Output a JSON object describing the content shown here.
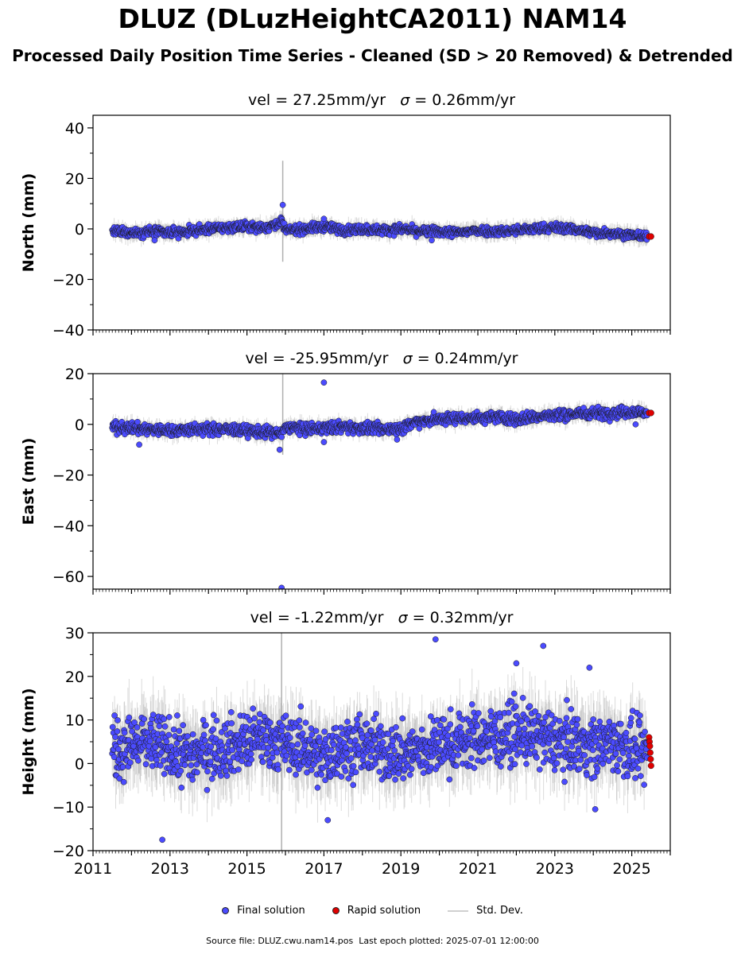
{
  "title": "DLUZ (DLuzHeightCA2011) NAM14",
  "subtitle": "Processed Daily Position Time Series - Cleaned (SD > 20 Removed) & Detrended",
  "legend": {
    "final_label": "Final solution",
    "rapid_label": "Rapid solution",
    "std_label": "Std. Dev."
  },
  "footer": {
    "source": "Source file: DLUZ.cwu.nam14.pos",
    "last_epoch": "Last epoch plotted: 2025-07-01 12:00:00"
  },
  "colors": {
    "final": "#4b4bff",
    "rapid": "#e00000",
    "std_dev": "#b0b0b0",
    "marker_edge": "#1a1a1a"
  },
  "chart_data": [
    {
      "type": "scatter",
      "panel": "north",
      "title": "vel = 27.25mm/yr   σ = 0.26mm/yr",
      "title_parts": {
        "prefix": "vel = 27.25mm/yr",
        "sigma_symbol": "σ",
        "sigma_text": " = 0.26mm/yr"
      },
      "ylabel": "North (mm)",
      "xlim": [
        2011,
        2026
      ],
      "ylim": [
        -40,
        45
      ],
      "yticks": [
        -40,
        -20,
        0,
        20,
        40
      ],
      "ytick_labels": [
        "−40",
        "−20",
        "0",
        "20",
        "40"
      ],
      "x_tick_labels_shown": false,
      "series": [
        {
          "name": "Final solution",
          "x": [
            2011.5,
            2012.0,
            2012.5,
            2013.0,
            2013.5,
            2014.0,
            2014.5,
            2015.0,
            2015.5,
            2015.9,
            2016.0,
            2016.5,
            2017.0,
            2017.5,
            2018.0,
            2018.5,
            2019.0,
            2019.5,
            2020.0,
            2020.5,
            2021.0,
            2021.5,
            2022.0,
            2022.5,
            2023.0,
            2023.5,
            2024.0,
            2024.5,
            2025.0,
            2025.4
          ],
          "y": [
            -1,
            -1.5,
            -1,
            -1.5,
            -1,
            0,
            0.5,
            1,
            0.5,
            3,
            -0.5,
            0,
            1,
            -0.5,
            0,
            -0.5,
            0,
            -1,
            -1,
            -1.5,
            -0.5,
            -1,
            -0.5,
            0,
            0.5,
            0,
            -1.5,
            -1.5,
            -2.5,
            -3
          ],
          "spread": 1.2,
          "outliers": [
            {
              "x": 2015.93,
              "y": 9.5
            },
            {
              "x": 2017.0,
              "y": 4.0
            },
            {
              "x": 2012.6,
              "y": -4.5
            },
            {
              "x": 2019.8,
              "y": -4.5
            }
          ]
        },
        {
          "name": "Rapid solution",
          "x": [
            2025.45,
            2025.5
          ],
          "y": [
            -3,
            -3
          ]
        }
      ],
      "std_dev": {
        "typical": 2.5,
        "spike": {
          "x": 2015.93,
          "up": 27,
          "down": -13
        }
      }
    },
    {
      "type": "scatter",
      "panel": "east",
      "title": "vel = -25.95mm/yr   σ = 0.24mm/yr",
      "title_parts": {
        "prefix": "vel = -25.95mm/yr",
        "sigma_symbol": "σ",
        "sigma_text": " = 0.24mm/yr"
      },
      "ylabel": "East (mm)",
      "xlim": [
        2011,
        2026
      ],
      "ylim": [
        -65,
        20
      ],
      "yticks": [
        -60,
        -40,
        -20,
        0,
        20
      ],
      "ytick_labels": [
        "−60",
        "−40",
        "−20",
        "0",
        "20"
      ],
      "x_tick_labels_shown": false,
      "series": [
        {
          "name": "Final solution",
          "x": [
            2011.5,
            2012.0,
            2012.5,
            2013.0,
            2013.5,
            2014.0,
            2014.5,
            2015.0,
            2015.5,
            2015.9,
            2016.0,
            2016.5,
            2017.0,
            2017.5,
            2018.0,
            2018.5,
            2019.0,
            2019.5,
            2020.0,
            2020.5,
            2021.0,
            2021.5,
            2022.0,
            2022.5,
            2023.0,
            2023.5,
            2024.0,
            2024.5,
            2025.0,
            2025.4
          ],
          "y": [
            -1,
            -1.5,
            -2,
            -2.5,
            -2,
            -2,
            -2,
            -2.5,
            -3,
            -4,
            -1,
            -2,
            -1.5,
            -1,
            -1.5,
            -2,
            -1.5,
            1.5,
            2,
            2.5,
            2.5,
            3,
            2,
            3,
            3.5,
            4,
            4.5,
            4.5,
            5,
            4.5
          ],
          "spread": 1.5,
          "outliers": [
            {
              "x": 2017.0,
              "y": 16.5
            },
            {
              "x": 2015.9,
              "y": -64.5
            },
            {
              "x": 2015.85,
              "y": -10
            },
            {
              "x": 2012.2,
              "y": -8
            },
            {
              "x": 2017.0,
              "y": -7
            },
            {
              "x": 2018.9,
              "y": -6
            },
            {
              "x": 2025.1,
              "y": 0
            }
          ]
        },
        {
          "name": "Rapid solution",
          "x": [
            2025.45,
            2025.5
          ],
          "y": [
            4.5,
            4.5
          ]
        }
      ],
      "std_dev": {
        "typical": 2.5,
        "spike": {
          "x": 2015.93,
          "up": 20,
          "down": -12
        }
      }
    },
    {
      "type": "scatter",
      "panel": "height",
      "title": "vel = -1.22mm/yr   σ = 0.32mm/yr",
      "title_parts": {
        "prefix": "vel = -1.22mm/yr",
        "sigma_symbol": "σ",
        "sigma_text": " = 0.32mm/yr"
      },
      "ylabel": "Height (mm)",
      "xlim": [
        2011,
        2026
      ],
      "ylim": [
        -20,
        30
      ],
      "yticks": [
        -20,
        -10,
        0,
        10,
        20,
        30
      ],
      "ytick_labels": [
        "−20",
        "−10",
        "0",
        "10",
        "20",
        "30"
      ],
      "xticks": [
        2011,
        2013,
        2015,
        2017,
        2019,
        2021,
        2023,
        2025
      ],
      "xtick_labels": [
        "2011",
        "2013",
        "2015",
        "2017",
        "2019",
        "2021",
        "2023",
        "2025"
      ],
      "x_tick_labels_shown": true,
      "series": [
        {
          "name": "Final solution",
          "x": [
            2011.5,
            2012.0,
            2012.5,
            2013.0,
            2013.5,
            2014.0,
            2014.5,
            2015.0,
            2015.5,
            2016.0,
            2016.5,
            2017.0,
            2017.5,
            2018.0,
            2018.5,
            2019.0,
            2019.5,
            2020.0,
            2020.5,
            2021.0,
            2021.5,
            2022.0,
            2022.5,
            2023.0,
            2023.5,
            2024.0,
            2024.5,
            2025.0,
            2025.4
          ],
          "y": [
            3,
            4,
            5,
            3,
            2,
            3,
            4,
            5,
            6,
            4,
            4,
            1,
            4,
            4,
            3,
            2,
            3,
            4,
            5,
            6,
            6,
            7,
            6,
            5,
            5,
            4,
            5,
            3,
            2
          ],
          "spread": 4.5,
          "outliers": [
            {
              "x": 2019.9,
              "y": 28.5
            },
            {
              "x": 2022.7,
              "y": 27
            },
            {
              "x": 2012.8,
              "y": -17.5
            },
            {
              "x": 2022.0,
              "y": 23
            },
            {
              "x": 2023.9,
              "y": 22
            },
            {
              "x": 2024.05,
              "y": -10.5
            },
            {
              "x": 2017.1,
              "y": -13
            }
          ]
        },
        {
          "name": "Rapid solution",
          "x": [
            2025.45,
            2025.46,
            2025.47,
            2025.48,
            2025.49,
            2025.5
          ],
          "y": [
            6,
            5,
            4,
            2.5,
            1,
            -0.5
          ]
        }
      ],
      "std_dev": {
        "typical": 6,
        "spike": {
          "x": 2015.9,
          "up": 30,
          "down": -20
        }
      }
    }
  ]
}
